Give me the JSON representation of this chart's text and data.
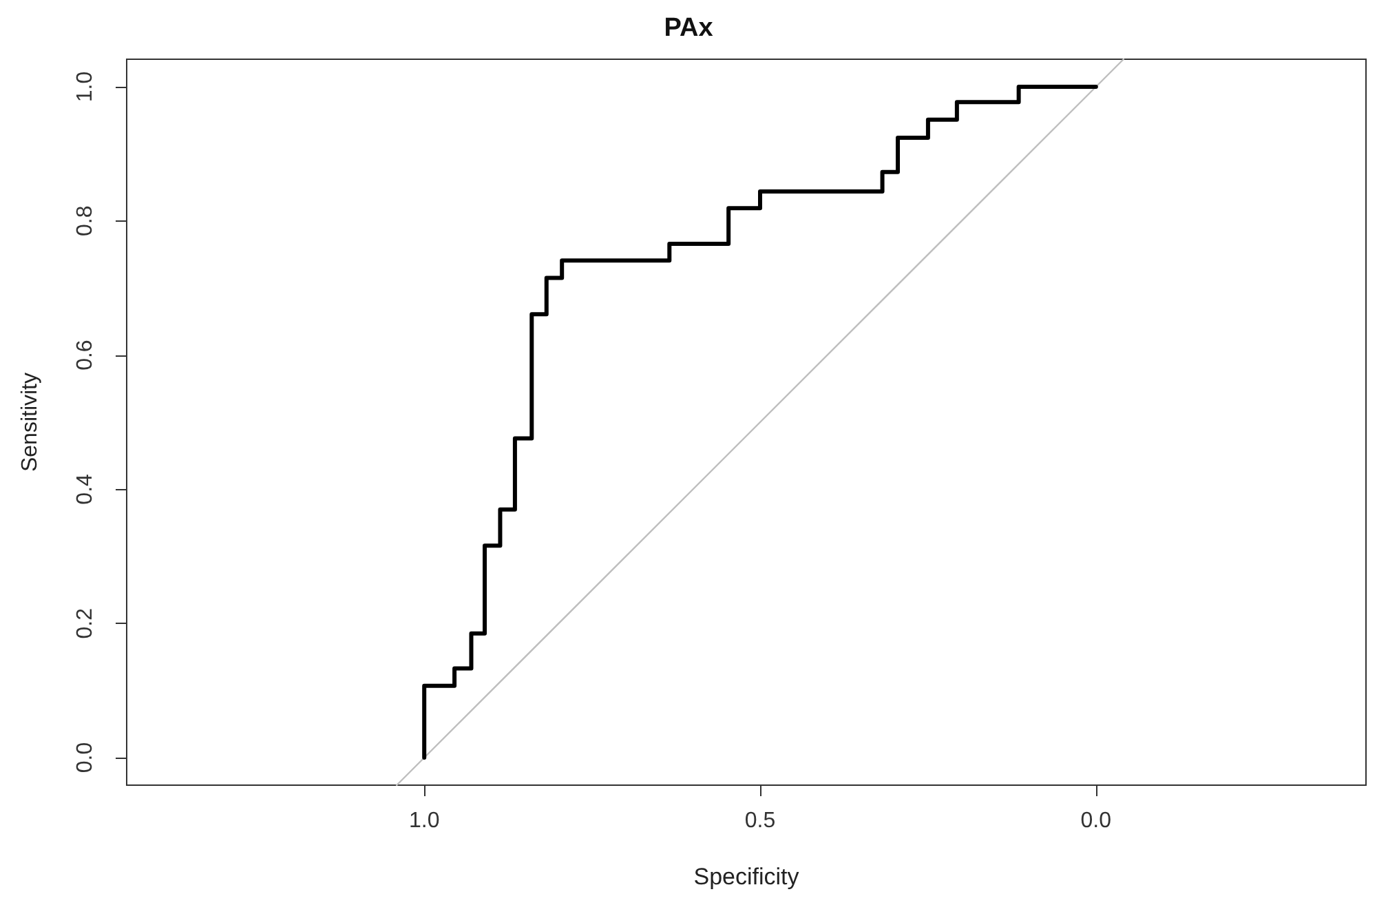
{
  "chart_data": {
    "type": "step",
    "title": "PAx",
    "xlabel": "Specificity",
    "ylabel": "Sensitivity",
    "xlim": [
      1.443,
      -0.402
    ],
    "ylim": [
      -0.041,
      1.041
    ],
    "xticks": [
      {
        "value": 1,
        "label": "1.0"
      },
      {
        "value": 0.5,
        "label": "0.5"
      },
      {
        "value": 0,
        "label": "0.0"
      }
    ],
    "yticks": [
      {
        "value": 0,
        "label": "0.0"
      },
      {
        "value": 0.2,
        "label": "0.2"
      },
      {
        "value": 0.4,
        "label": "0.4"
      },
      {
        "value": 0.6,
        "label": "0.6"
      },
      {
        "value": 0.8,
        "label": "0.8"
      },
      {
        "value": 1,
        "label": "1.0"
      }
    ],
    "grid": false,
    "marker": "none",
    "line_style": "solid",
    "series": [
      {
        "type": "line",
        "color": "#bebebe",
        "x": [
          1.041,
          -0.041
        ],
        "values": [
          -0.041,
          1.041
        ]
      },
      {
        "color": "#000000",
        "x": [
          1,
          1,
          0.955,
          0.93,
          0.91,
          0.887,
          0.865,
          0.84,
          0.818,
          0.795,
          0.635,
          0.547,
          0.5,
          0.318,
          0.295,
          0.25,
          0.207,
          0.115,
          0
        ],
        "values": [
          0,
          0.107,
          0.133,
          0.185,
          0.316,
          0.37,
          0.476,
          0.661,
          0.715,
          0.741,
          0.766,
          0.819,
          0.844,
          0.873,
          0.924,
          0.951,
          0.977,
          1,
          1
        ]
      }
    ]
  }
}
